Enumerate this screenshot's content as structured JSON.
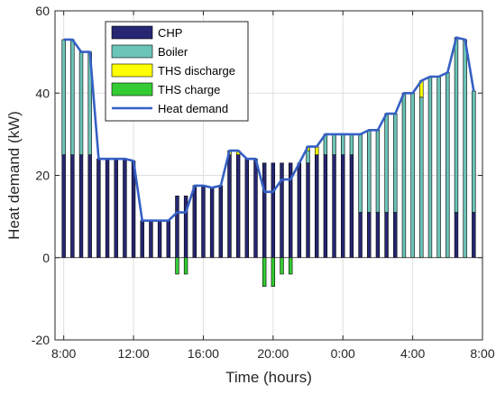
{
  "chart_data": {
    "type": "bar",
    "xlabel": "Time (hours)",
    "ylabel": "Heat demand (kW)",
    "ylim": [
      -20,
      60
    ],
    "yticks": [
      -20,
      0,
      20,
      40,
      60
    ],
    "xlim": [
      7.5,
      32.0
    ],
    "xticks": [
      {
        "value": 8,
        "label": "8:00"
      },
      {
        "value": 12,
        "label": "12:00"
      },
      {
        "value": 16,
        "label": "16:00"
      },
      {
        "value": 20,
        "label": "20:00"
      },
      {
        "value": 24,
        "label": "0:00"
      },
      {
        "value": 28,
        "label": "4:00"
      },
      {
        "value": 32,
        "label": "8:00"
      }
    ],
    "grid": true,
    "legend_position": "top-left",
    "x": [
      8.0,
      8.5,
      9.0,
      9.5,
      10.0,
      10.5,
      11.0,
      11.5,
      12.0,
      12.5,
      13.0,
      13.5,
      14.0,
      14.5,
      15.0,
      15.5,
      16.0,
      16.5,
      17.0,
      17.5,
      18.0,
      18.5,
      19.0,
      19.5,
      20.0,
      20.5,
      21.0,
      21.5,
      22.0,
      22.5,
      23.0,
      23.5,
      24.0,
      24.5,
      25.0,
      25.5,
      26.0,
      26.5,
      27.0,
      27.5,
      28.0,
      28.5,
      29.0,
      29.5,
      30.0,
      30.5,
      31.0,
      31.5
    ],
    "series": [
      {
        "name": "CHP",
        "color": "#262673",
        "values": [
          25.0,
          25.0,
          25.0,
          25.0,
          24.0,
          24.0,
          24.0,
          24.0,
          23.5,
          9.0,
          9.0,
          9.0,
          9.0,
          15.0,
          15.0,
          17.5,
          17.5,
          17.0,
          17.5,
          25.0,
          25.0,
          24.0,
          24.0,
          23.0,
          23.0,
          23.0,
          23.0,
          23.0,
          23.0,
          25.0,
          25.0,
          25.0,
          25.0,
          25.0,
          11.0,
          11.0,
          11.0,
          11.0,
          11.0,
          0.0,
          0.0,
          0.0,
          0.0,
          0.0,
          0.0,
          11.0,
          0.0,
          11.0
        ]
      },
      {
        "name": "Boiler",
        "color": "#6bc4b8",
        "values": [
          28.0,
          28.0,
          25.0,
          25.0,
          0.0,
          0.0,
          0.0,
          0.0,
          0.0,
          0.0,
          0.0,
          0.0,
          0.0,
          0.0,
          0.0,
          0.0,
          0.0,
          0.0,
          0.0,
          0.0,
          0.0,
          0.0,
          0.0,
          0.0,
          0.0,
          0.0,
          0.0,
          0.0,
          3.0,
          0.0,
          5.0,
          5.0,
          5.0,
          5.0,
          19.0,
          20.0,
          20.0,
          24.0,
          24.0,
          40.0,
          40.0,
          39.0,
          44.0,
          44.0,
          45.0,
          42.5,
          53.0,
          29.5
        ]
      },
      {
        "name": "THS discharge",
        "color": "#ffff00",
        "values": [
          0.0,
          0.0,
          0.0,
          0.0,
          0.0,
          0.0,
          0.0,
          0.0,
          0.0,
          0.0,
          0.0,
          0.0,
          0.0,
          0.0,
          0.0,
          0.0,
          0.0,
          0.0,
          0.0,
          1.0,
          1.0,
          0.0,
          0.0,
          0.0,
          0.0,
          0.0,
          0.0,
          0.0,
          1.0,
          2.0,
          0.0,
          0.0,
          0.0,
          0.0,
          0.0,
          0.0,
          0.0,
          0.0,
          0.0,
          0.0,
          0.0,
          4.0,
          0.0,
          0.0,
          0.0,
          0.0,
          0.0,
          0.0
        ]
      },
      {
        "name": "THS charge",
        "color": "#33cc33",
        "values": [
          0.0,
          0.0,
          0.0,
          0.0,
          0.0,
          0.0,
          0.0,
          0.0,
          0.0,
          0.0,
          0.0,
          0.0,
          0.0,
          -4.0,
          -4.0,
          0.0,
          0.0,
          0.0,
          0.0,
          0.0,
          0.0,
          0.0,
          0.0,
          -7.0,
          -7.0,
          -4.0,
          -4.0,
          0.0,
          0.0,
          0.0,
          0.0,
          0.0,
          0.0,
          0.0,
          0.0,
          0.0,
          0.0,
          0.0,
          0.0,
          0.0,
          0.0,
          0.0,
          0.0,
          0.0,
          0.0,
          0.0,
          0.0,
          0.0
        ]
      },
      {
        "name": "Heat demand",
        "color": "#3560c4",
        "type": "line",
        "x": [
          8.0,
          8.5,
          9.0,
          9.5,
          10.0,
          10.5,
          11.0,
          11.5,
          12.0,
          12.5,
          13.0,
          13.5,
          14.0,
          14.5,
          15.0,
          15.5,
          16.0,
          16.5,
          17.0,
          17.5,
          18.0,
          18.5,
          19.0,
          19.5,
          20.0,
          20.5,
          21.0,
          21.5,
          22.0,
          22.5,
          23.0,
          23.5,
          24.0,
          24.5,
          25.0,
          25.5,
          26.0,
          26.5,
          27.0,
          27.5,
          28.0,
          28.5,
          29.0,
          29.5,
          30.0,
          30.5,
          31.0,
          31.5
        ],
        "values": [
          53.0,
          53.0,
          50.0,
          50.0,
          24.0,
          24.0,
          24.0,
          24.0,
          23.5,
          9.0,
          9.0,
          9.0,
          9.0,
          11.0,
          11.0,
          17.5,
          17.5,
          17.0,
          17.5,
          26.0,
          26.0,
          24.0,
          24.0,
          16.0,
          16.0,
          19.0,
          19.0,
          23.0,
          27.0,
          27.0,
          30.0,
          30.0,
          30.0,
          30.0,
          30.0,
          31.0,
          31.0,
          35.0,
          35.0,
          40.0,
          40.0,
          43.0,
          44.0,
          44.0,
          45.0,
          53.5,
          53.0,
          40.5
        ]
      }
    ]
  }
}
